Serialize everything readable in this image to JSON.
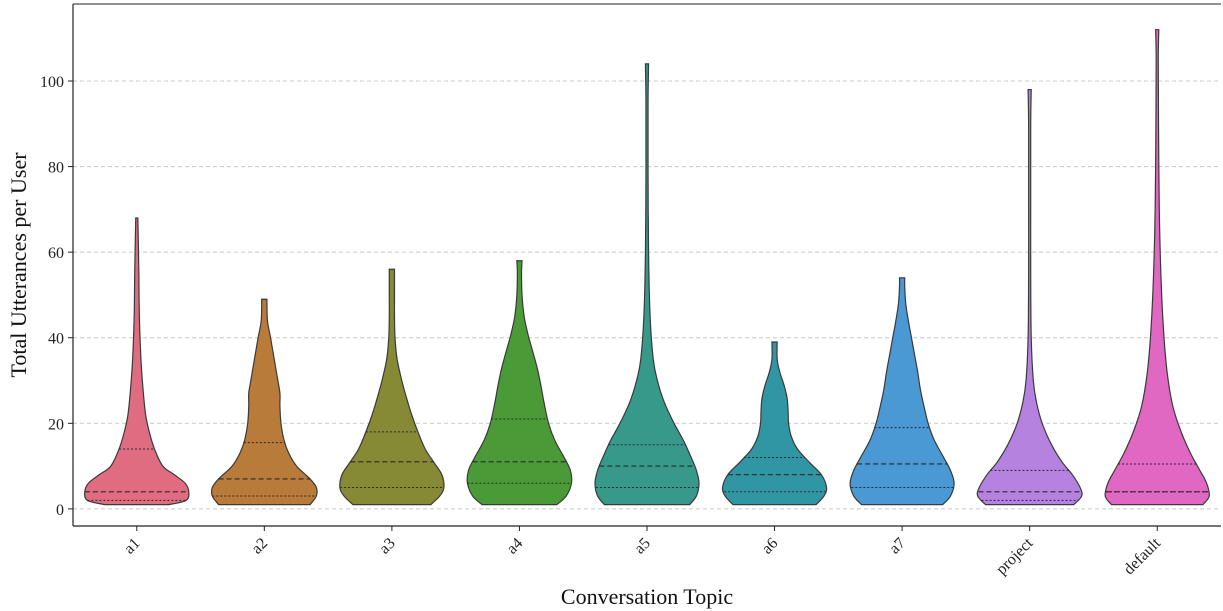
{
  "chart_data": {
    "type": "violin",
    "title": "",
    "xlabel": "Conversation Topic",
    "ylabel": "Total Utterances per User",
    "ylim": [
      -4,
      118
    ],
    "yticks": [
      0,
      20,
      40,
      60,
      80,
      100
    ],
    "grid": "y-dashed",
    "categories": [
      "a1",
      "a2",
      "a3",
      "a4",
      "a5",
      "a6",
      "a7",
      "project",
      "default"
    ],
    "series": [
      {
        "category": "a1",
        "color": "#e06c82",
        "min": 1,
        "max": 68,
        "quartiles": [
          2,
          4,
          14
        ],
        "profile": [
          [
            1,
            0.62
          ],
          [
            2,
            0.95
          ],
          [
            4,
            1.0
          ],
          [
            6,
            0.93
          ],
          [
            8,
            0.72
          ],
          [
            10,
            0.5
          ],
          [
            14,
            0.34
          ],
          [
            18,
            0.24
          ],
          [
            22,
            0.17
          ],
          [
            28,
            0.12
          ],
          [
            35,
            0.08
          ],
          [
            45,
            0.05
          ],
          [
            55,
            0.04
          ],
          [
            62,
            0.03
          ],
          [
            68,
            0.02
          ]
        ]
      },
      {
        "category": "a2",
        "color": "#b97b3a",
        "min": 1,
        "max": 49,
        "quartiles": [
          3,
          7,
          15.5
        ],
        "profile": [
          [
            1,
            0.88
          ],
          [
            3,
            1.0
          ],
          [
            5,
            1.0
          ],
          [
            7,
            0.88
          ],
          [
            10,
            0.62
          ],
          [
            13,
            0.47
          ],
          [
            16,
            0.38
          ],
          [
            20,
            0.32
          ],
          [
            24,
            0.3
          ],
          [
            27,
            0.3
          ],
          [
            30,
            0.26
          ],
          [
            35,
            0.19
          ],
          [
            40,
            0.12
          ],
          [
            44,
            0.06
          ],
          [
            49,
            0.05
          ]
        ]
      },
      {
        "category": "a3",
        "color": "#868a35",
        "min": 1,
        "max": 56,
        "quartiles": [
          5,
          11,
          18
        ],
        "profile": [
          [
            1,
            0.75
          ],
          [
            3,
            0.92
          ],
          [
            5,
            1.0
          ],
          [
            8,
            0.96
          ],
          [
            11,
            0.8
          ],
          [
            14,
            0.64
          ],
          [
            18,
            0.5
          ],
          [
            22,
            0.38
          ],
          [
            26,
            0.28
          ],
          [
            30,
            0.19
          ],
          [
            35,
            0.1
          ],
          [
            40,
            0.06
          ],
          [
            45,
            0.05
          ],
          [
            50,
            0.05
          ],
          [
            56,
            0.05
          ]
        ]
      },
      {
        "category": "a4",
        "color": "#4a9a38",
        "min": 1,
        "max": 58,
        "quartiles": [
          6,
          11,
          21
        ],
        "profile": [
          [
            1,
            0.72
          ],
          [
            3,
            0.9
          ],
          [
            6,
            1.0
          ],
          [
            9,
            0.98
          ],
          [
            12,
            0.86
          ],
          [
            16,
            0.68
          ],
          [
            20,
            0.56
          ],
          [
            25,
            0.47
          ],
          [
            29,
            0.41
          ],
          [
            33,
            0.34
          ],
          [
            37,
            0.25
          ],
          [
            41,
            0.16
          ],
          [
            45,
            0.09
          ],
          [
            50,
            0.05
          ],
          [
            55,
            0.04
          ],
          [
            58,
            0.05
          ]
        ]
      },
      {
        "category": "a5",
        "color": "#36998a",
        "min": 1,
        "max": 104,
        "quartiles": [
          5,
          10,
          15
        ],
        "profile": [
          [
            1,
            0.82
          ],
          [
            3,
            0.95
          ],
          [
            6,
            1.0
          ],
          [
            9,
            0.95
          ],
          [
            12,
            0.85
          ],
          [
            16,
            0.7
          ],
          [
            20,
            0.52
          ],
          [
            25,
            0.33
          ],
          [
            30,
            0.2
          ],
          [
            35,
            0.12
          ],
          [
            45,
            0.06
          ],
          [
            60,
            0.03
          ],
          [
            80,
            0.02
          ],
          [
            95,
            0.02
          ],
          [
            104,
            0.03
          ]
        ]
      },
      {
        "category": "a6",
        "color": "#3196a4",
        "min": 1,
        "max": 39,
        "quartiles": [
          4,
          8,
          12
        ],
        "profile": [
          [
            1,
            0.8
          ],
          [
            3,
            0.95
          ],
          [
            5,
            1.0
          ],
          [
            8,
            0.9
          ],
          [
            11,
            0.66
          ],
          [
            14,
            0.44
          ],
          [
            17,
            0.32
          ],
          [
            20,
            0.27
          ],
          [
            23,
            0.26
          ],
          [
            26,
            0.24
          ],
          [
            29,
            0.18
          ],
          [
            32,
            0.1
          ],
          [
            35,
            0.05
          ],
          [
            39,
            0.05
          ]
        ]
      },
      {
        "category": "a7",
        "color": "#4a98d4",
        "min": 1,
        "max": 54,
        "quartiles": [
          5,
          10.5,
          19
        ],
        "profile": [
          [
            1,
            0.78
          ],
          [
            3,
            0.93
          ],
          [
            6,
            1.0
          ],
          [
            9,
            0.93
          ],
          [
            12,
            0.8
          ],
          [
            16,
            0.62
          ],
          [
            20,
            0.5
          ],
          [
            24,
            0.42
          ],
          [
            28,
            0.35
          ],
          [
            32,
            0.3
          ],
          [
            36,
            0.24
          ],
          [
            40,
            0.18
          ],
          [
            44,
            0.12
          ],
          [
            48,
            0.07
          ],
          [
            52,
            0.05
          ],
          [
            54,
            0.05
          ]
        ]
      },
      {
        "category": "project",
        "color": "#b682e0",
        "min": 1,
        "max": 98,
        "quartiles": [
          2,
          4,
          9
        ],
        "profile": [
          [
            1,
            0.85
          ],
          [
            3,
            1.0
          ],
          [
            5,
            0.97
          ],
          [
            8,
            0.82
          ],
          [
            11,
            0.62
          ],
          [
            15,
            0.42
          ],
          [
            20,
            0.24
          ],
          [
            25,
            0.13
          ],
          [
            30,
            0.07
          ],
          [
            40,
            0.03
          ],
          [
            55,
            0.02
          ],
          [
            75,
            0.02
          ],
          [
            90,
            0.02
          ],
          [
            98,
            0.03
          ]
        ]
      },
      {
        "category": "default",
        "color": "#e068c2",
        "min": 1,
        "max": 112,
        "quartiles": [
          4,
          4,
          10.5
        ],
        "profile": [
          [
            1,
            0.88
          ],
          [
            3,
            1.0
          ],
          [
            6,
            0.95
          ],
          [
            9,
            0.82
          ],
          [
            13,
            0.64
          ],
          [
            18,
            0.46
          ],
          [
            24,
            0.3
          ],
          [
            32,
            0.19
          ],
          [
            42,
            0.12
          ],
          [
            55,
            0.07
          ],
          [
            70,
            0.04
          ],
          [
            90,
            0.025
          ],
          [
            105,
            0.02
          ],
          [
            112,
            0.03
          ]
        ]
      }
    ]
  }
}
